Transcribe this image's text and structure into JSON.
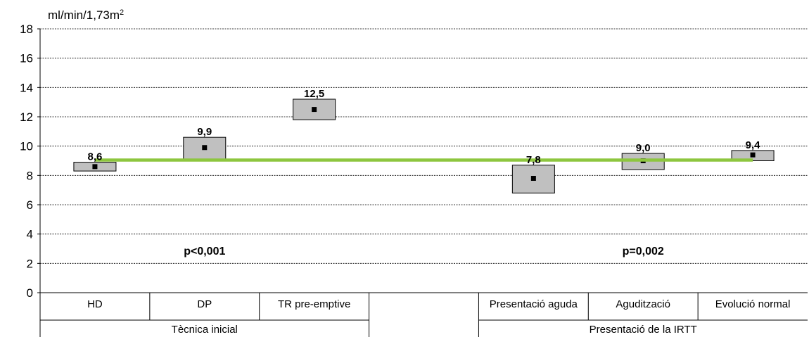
{
  "chart_data": {
    "type": "floating-bar",
    "unit_label": "ml/min/1,73m",
    "unit_superscript": "2",
    "ylim": [
      0,
      18
    ],
    "yticks": [
      "0",
      "2",
      "4",
      "6",
      "8",
      "10",
      "12",
      "14",
      "16",
      "18"
    ],
    "grid": true,
    "categories": [
      "HD",
      "DP",
      "TR pre-emptive",
      "",
      "Presentació aguda",
      "Agudització",
      "Evolució normal"
    ],
    "groups": [
      {
        "label": "Tècnica inicial",
        "from": 0,
        "to": 2
      },
      {
        "label": "Presentació de la IRTT",
        "from": 4,
        "to": 6
      }
    ],
    "series": [
      {
        "points": [
          {
            "category": "HD",
            "mean": 8.6,
            "label": "8,6",
            "low": 8.3,
            "high": 8.9
          },
          {
            "category": "DP",
            "mean": 9.9,
            "label": "9,9",
            "low": 9.1,
            "high": 10.6
          },
          {
            "category": "TR pre-emptive",
            "mean": 12.5,
            "label": "12,5",
            "low": 11.8,
            "high": 13.2
          },
          {
            "category": "Presentació aguda",
            "mean": 7.8,
            "label": "7,8",
            "low": 6.8,
            "high": 8.7
          },
          {
            "category": "Agudització",
            "mean": 9.0,
            "label": "9,0",
            "low": 8.4,
            "high": 9.5
          },
          {
            "category": "Evolució normal",
            "mean": 9.4,
            "label": "9,4",
            "low": 9.0,
            "high": 9.7
          }
        ]
      }
    ],
    "reference_line": {
      "value": 9.05,
      "from_category": 0,
      "to_category": 6,
      "color": "#8dc63f"
    },
    "annotations": [
      {
        "text": "p<0,001",
        "category": 1,
        "y": 2.6
      },
      {
        "text": "p=0,002",
        "category": 5,
        "y": 2.6
      }
    ],
    "box_color": "#c0c0c0"
  }
}
